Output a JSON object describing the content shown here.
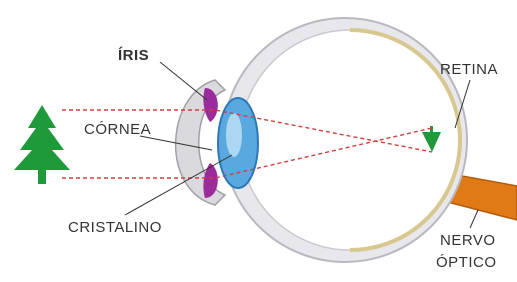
{
  "labels": {
    "iris": "ÍRIS",
    "cornea": "CÓRNEA",
    "cristalino": "CRISTALINO",
    "retina": "RETINA",
    "nervo_optico": [
      "NERVO",
      "ÓPTICO"
    ]
  }
}
